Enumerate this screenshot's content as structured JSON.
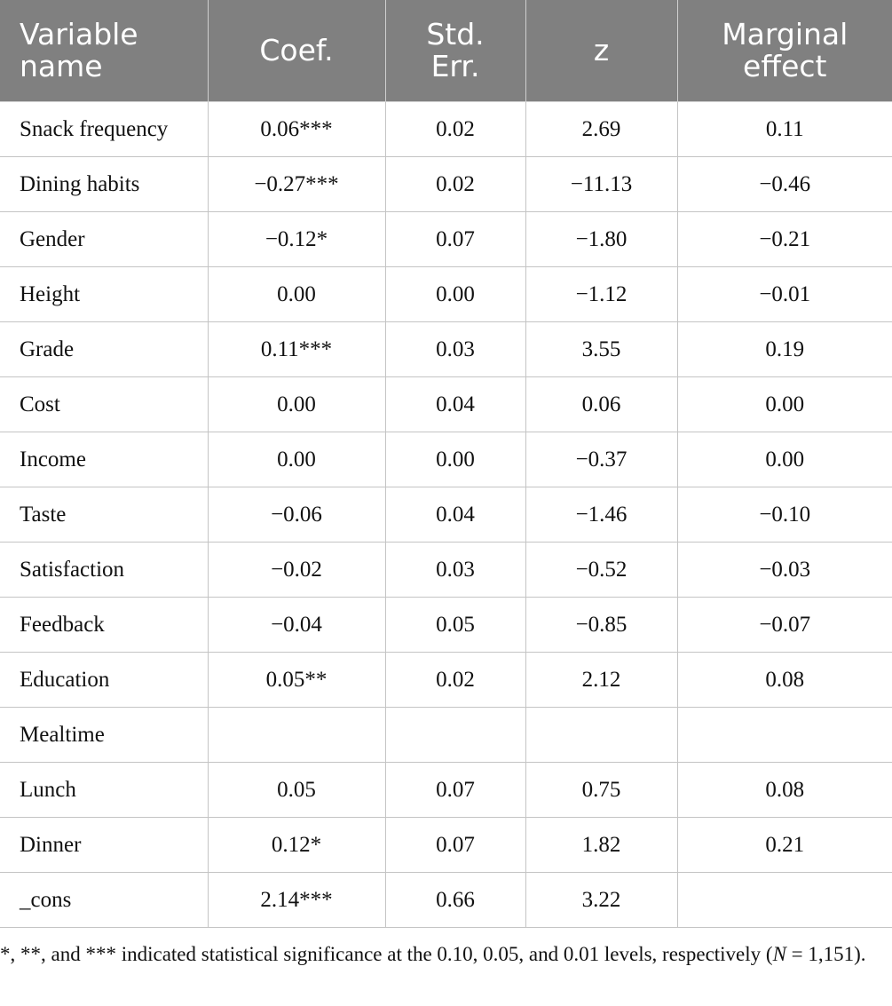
{
  "table": {
    "headers": {
      "variable_line1": "Variable",
      "variable_line2": "name",
      "coef": "Coef.",
      "stderr_line1": "Std.",
      "stderr_line2": "Err.",
      "z": "z",
      "marginal_line1": "Marginal",
      "marginal_line2": "effect"
    },
    "rows": [
      {
        "name": "Snack frequency",
        "coef": "0.06***",
        "se": "0.02",
        "z": "2.69",
        "me": "0.11"
      },
      {
        "name": "Dining habits",
        "coef": "−0.27***",
        "se": "0.02",
        "z": "−11.13",
        "me": "−0.46"
      },
      {
        "name": "Gender",
        "coef": "−0.12*",
        "se": "0.07",
        "z": "−1.80",
        "me": "−0.21"
      },
      {
        "name": "Height",
        "coef": "0.00",
        "se": "0.00",
        "z": "−1.12",
        "me": "−0.01"
      },
      {
        "name": "Grade",
        "coef": "0.11***",
        "se": "0.03",
        "z": "3.55",
        "me": "0.19"
      },
      {
        "name": "Cost",
        "coef": "0.00",
        "se": "0.04",
        "z": "0.06",
        "me": "0.00"
      },
      {
        "name": "Income",
        "coef": "0.00",
        "se": "0.00",
        "z": "−0.37",
        "me": "0.00"
      },
      {
        "name": "Taste",
        "coef": "−0.06",
        "se": "0.04",
        "z": "−1.46",
        "me": "−0.10"
      },
      {
        "name": "Satisfaction",
        "coef": "−0.02",
        "se": "0.03",
        "z": "−0.52",
        "me": "−0.03"
      },
      {
        "name": "Feedback",
        "coef": "−0.04",
        "se": "0.05",
        "z": "−0.85",
        "me": "−0.07"
      },
      {
        "name": "Education",
        "coef": "0.05**",
        "se": "0.02",
        "z": "2.12",
        "me": "0.08"
      },
      {
        "name": "Mealtime",
        "coef": "",
        "se": "",
        "z": "",
        "me": ""
      },
      {
        "name": "Lunch",
        "coef": "0.05",
        "se": "0.07",
        "z": "0.75",
        "me": "0.08"
      },
      {
        "name": "Dinner",
        "coef": "0.12*",
        "se": "0.07",
        "z": "1.82",
        "me": "0.21"
      },
      {
        "name": "_cons",
        "coef": "2.14***",
        "se": "0.66",
        "z": "3.22",
        "me": ""
      }
    ]
  },
  "footnote": {
    "text": "*, **, and *** indicated statistical significance at the 0.10, 0.05, and 0.01 levels, respectively (",
    "n_symbol": "N",
    "n_value": " = 1,151)."
  },
  "colors": {
    "header_bg": "#808080",
    "header_text": "#ffffff",
    "grid": "#c4c4c4"
  }
}
